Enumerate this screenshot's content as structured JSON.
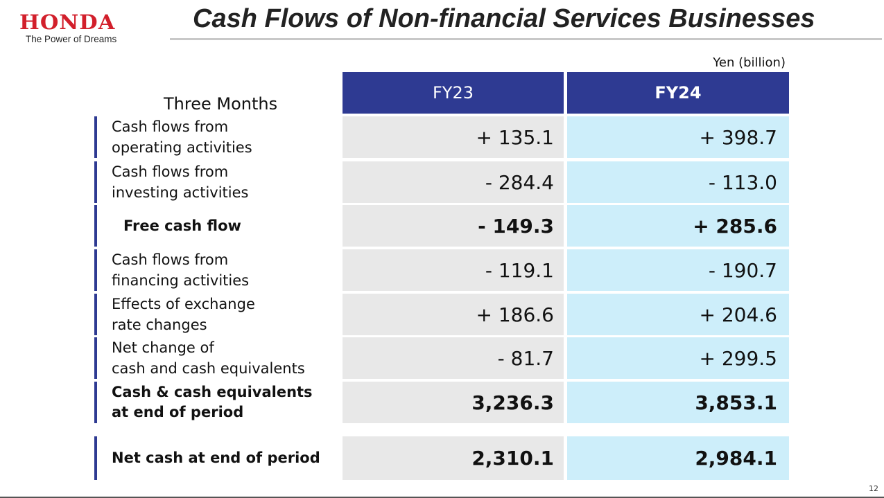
{
  "brand": {
    "name": "HONDA",
    "tagline": "The Power of Dreams",
    "color": "#d21f2b"
  },
  "title": "Cash Flows of Non-financial Services Businesses",
  "unit": "Yen (billion)",
  "period_label": "Three Months",
  "columns": [
    "FY23",
    "FY24"
  ],
  "header_color": "#2e3a92",
  "rows": [
    {
      "label_1": "Cash flows from",
      "label_2": "operating activities",
      "fy23": "+ 135.1",
      "fy24": "+ 398.7"
    },
    {
      "label_1": "Cash flows from",
      "label_2": "investing activities",
      "fy23": "- 284.4",
      "fy24": "- 113.0"
    },
    {
      "label_1": "Free cash flow",
      "label_2": "",
      "fy23": "- 149.3",
      "fy24": "+ 285.6"
    },
    {
      "label_1": "Cash flows from",
      "label_2": "financing activities",
      "fy23": "- 119.1",
      "fy24": "- 190.7"
    },
    {
      "label_1": "Effects of exchange",
      "label_2": "rate changes",
      "fy23": "+ 186.6",
      "fy24": "+ 204.6"
    },
    {
      "label_1": "Net change of",
      "label_2": "cash and cash equivalents",
      "fy23": "- 81.7",
      "fy24": "+ 299.5"
    },
    {
      "label_1": "Cash & cash equivalents",
      "label_2": "at end of period",
      "fy23": "3,236.3",
      "fy24": "3,853.1"
    },
    {
      "label_1": "Net cash at end of period",
      "label_2": "",
      "fy23": "2,310.1",
      "fy24": "2,984.1"
    }
  ],
  "page_number": "12"
}
